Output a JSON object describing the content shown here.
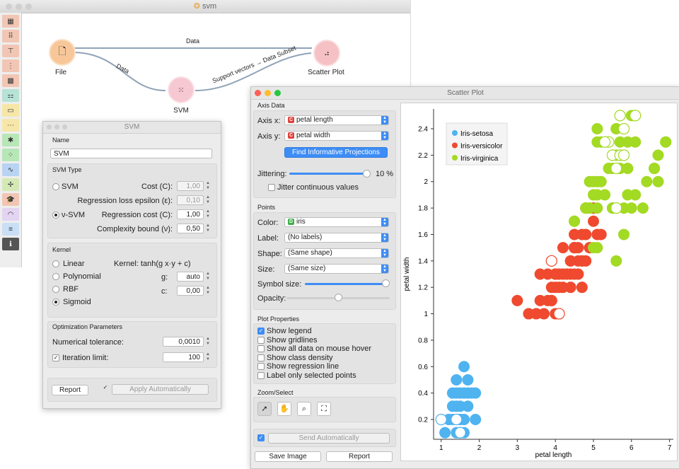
{
  "main_window": {
    "title": "svm"
  },
  "toolbox": {
    "items": [
      {
        "icon": "data-table-icon",
        "glyph": "▦",
        "color": "#f2c6b4"
      },
      {
        "icon": "scatter-icon",
        "glyph": "⠿",
        "color": "#f2c6b4"
      },
      {
        "icon": "tree-icon",
        "glyph": "⊤",
        "color": "#f2c6b4"
      },
      {
        "icon": "distributions-icon",
        "glyph": "⋮",
        "color": "#f2c6b4"
      },
      {
        "icon": "heatmap-icon",
        "glyph": "▩",
        "color": "#f2c6b4"
      },
      {
        "icon": "mosaic-icon",
        "glyph": "⚏",
        "color": "#b7e2d6"
      },
      {
        "icon": "image-icon",
        "glyph": "▭",
        "color": "#f6e7a8"
      },
      {
        "icon": "sieve-icon",
        "glyph": "⋯",
        "color": "#f6e7a8"
      },
      {
        "icon": "network-icon",
        "glyph": "✱",
        "color": "#b7e6b7"
      },
      {
        "icon": "pivot-icon",
        "glyph": "⁘",
        "color": "#b7e6b7"
      },
      {
        "icon": "line-plot-icon",
        "glyph": "∿",
        "color": "#b9d3f3"
      },
      {
        "icon": "pythagoras-icon",
        "glyph": "✢",
        "color": "#d5e9b6"
      },
      {
        "icon": "education-icon",
        "glyph": "🎓",
        "color": "#f2c6b4"
      },
      {
        "icon": "rainbow-icon",
        "glyph": "◠",
        "color": "#e3d4f1"
      },
      {
        "icon": "text-icon",
        "glyph": "≡",
        "color": "#c9dff5"
      },
      {
        "icon": "info-icon",
        "glyph": "ℹ",
        "color": "#555555"
      }
    ]
  },
  "workflow": {
    "nodes": {
      "file": {
        "label": "File"
      },
      "svm": {
        "label": "SVM"
      },
      "scatter": {
        "label": "Scatter Plot"
      }
    },
    "links": {
      "file_scatter": "Data",
      "file_svm": "Data",
      "svm_scatter": "Support vectors → Data Subset"
    }
  },
  "svm_dialog": {
    "title": "SVM",
    "name_label": "Name",
    "name_value": "SVM",
    "svm_type_label": "SVM Type",
    "svm_option": "SVM",
    "cost_label": "Cost (C):",
    "cost_value": "1,00",
    "epsilon_label": "Regression loss epsilon (ε):",
    "epsilon_value": "0,10",
    "nu_option": "ν-SVM",
    "reg_cost_label": "Regression cost (C):",
    "reg_cost_value": "1,00",
    "complexity_label": "Complexity bound (ν):",
    "complexity_value": "0,50",
    "kernel_label": "Kernel",
    "kernel_options": [
      "Linear",
      "Polynomial",
      "RBF",
      "Sigmoid"
    ],
    "kernel_formula": "Kernel: tanh(g x·y + c)",
    "g_label": "g:",
    "g_value": "auto",
    "c_label": "c:",
    "c_value": "0,00",
    "opt_label": "Optimization Parameters",
    "tolerance_label": "Numerical tolerance:",
    "tolerance_value": "0,0010",
    "iteration_label": "Iteration limit:",
    "iteration_value": "100",
    "report_button": "Report",
    "apply_button": "Apply Automatically"
  },
  "scatter_dialog": {
    "title": "Scatter Plot",
    "axis_data_label": "Axis Data",
    "axis_x_label": "Axis x:",
    "axis_x_value": "petal length",
    "axis_y_label": "Axis y:",
    "axis_y_value": "petal width",
    "find_button": "Find Informative Projections",
    "jittering_label": "Jittering:",
    "jittering_value": "10 %",
    "jitter_continuous_label": "Jitter continuous values",
    "points_label": "Points",
    "color_label": "Color:",
    "color_value": "iris",
    "label_label": "Label:",
    "label_value": "(No labels)",
    "shape_label": "Shape:",
    "shape_value": "(Same shape)",
    "size_label": "Size:",
    "size_value": "(Same size)",
    "symbol_size_label": "Symbol size:",
    "opacity_label": "Opacity:",
    "plot_props_label": "Plot Properties",
    "plot_props": [
      {
        "label": "Show legend",
        "checked": true
      },
      {
        "label": "Show gridlines",
        "checked": false
      },
      {
        "label": "Show all data on mouse hover",
        "checked": false
      },
      {
        "label": "Show class density",
        "checked": false
      },
      {
        "label": "Show regression line",
        "checked": false
      },
      {
        "label": "Label only selected points",
        "checked": false
      }
    ],
    "zoom_label": "Zoom/Select",
    "send_button": "Send Automatically",
    "save_button": "Save Image",
    "report_button": "Report",
    "var_icon_c": "C",
    "var_icon_d": "D"
  },
  "chart_data": {
    "type": "scatter",
    "xlabel": "petal length",
    "ylabel": "petal width",
    "xlim": [
      0.8,
      7.1
    ],
    "ylim": [
      0.05,
      2.55
    ],
    "xticks": [
      1,
      2,
      3,
      4,
      5,
      6,
      7
    ],
    "yticks": [
      0.2,
      0.4,
      0.6,
      0.8,
      1,
      1.2,
      1.4,
      1.6,
      1.8,
      2,
      2.2,
      2.4
    ],
    "legend_position": "top-left",
    "series": [
      {
        "name": "Iris-setosa",
        "color": "#4fb3f0",
        "points": [
          [
            1.4,
            0.2
          ],
          [
            1.3,
            0.2
          ],
          [
            1.5,
            0.2
          ],
          [
            1.7,
            0.4
          ],
          [
            1.4,
            0.3
          ],
          [
            1.5,
            0.1
          ],
          [
            1.6,
            0.2
          ],
          [
            1.1,
            0.1
          ],
          [
            1.2,
            0.2
          ],
          [
            1.3,
            0.4
          ],
          [
            1.4,
            0.4
          ],
          [
            1.7,
            0.3
          ],
          [
            1.5,
            0.3
          ],
          [
            1.0,
            0.2
          ],
          [
            1.9,
            0.2
          ],
          [
            1.6,
            0.4
          ],
          [
            1.5,
            0.4
          ],
          [
            1.6,
            0.6
          ],
          [
            1.9,
            0.4
          ],
          [
            1.6,
            0.2
          ],
          [
            1.4,
            0.1
          ],
          [
            1.5,
            0.2
          ],
          [
            1.3,
            0.3
          ],
          [
            1.2,
            0.2
          ],
          [
            1.7,
            0.5
          ],
          [
            1.8,
            0.4
          ],
          [
            1.4,
            0.5
          ],
          [
            1.6,
            0.1
          ],
          [
            1.5,
            0.1
          ]
        ],
        "hollow": [
          [
            1.0,
            0.2
          ],
          [
            1.4,
            0.2
          ],
          [
            1.5,
            0.1
          ]
        ]
      },
      {
        "name": "Iris-versicolor",
        "color": "#ef4a2f",
        "points": [
          [
            4.7,
            1.4
          ],
          [
            4.5,
            1.5
          ],
          [
            4.9,
            1.5
          ],
          [
            4.0,
            1.3
          ],
          [
            4.6,
            1.5
          ],
          [
            4.5,
            1.3
          ],
          [
            4.7,
            1.6
          ],
          [
            3.3,
            1.0
          ],
          [
            4.6,
            1.3
          ],
          [
            3.9,
            1.4
          ],
          [
            3.5,
            1.0
          ],
          [
            4.2,
            1.5
          ],
          [
            4.0,
            1.0
          ],
          [
            4.7,
            1.4
          ],
          [
            3.6,
            1.3
          ],
          [
            4.4,
            1.4
          ],
          [
            4.5,
            1.5
          ],
          [
            4.1,
            1.0
          ],
          [
            4.5,
            1.5
          ],
          [
            3.9,
            1.1
          ],
          [
            4.8,
            1.8
          ],
          [
            4.0,
            1.3
          ],
          [
            4.9,
            1.5
          ],
          [
            4.7,
            1.2
          ],
          [
            4.3,
            1.3
          ],
          [
            4.4,
            1.4
          ],
          [
            4.8,
            1.4
          ],
          [
            5.0,
            1.7
          ],
          [
            4.5,
            1.5
          ],
          [
            3.5,
            1.0
          ],
          [
            3.8,
            1.1
          ],
          [
            3.7,
            1.0
          ],
          [
            3.9,
            1.2
          ],
          [
            5.1,
            1.6
          ],
          [
            4.5,
            1.5
          ],
          [
            4.5,
            1.6
          ],
          [
            4.4,
            1.3
          ],
          [
            4.1,
            1.3
          ],
          [
            4.0,
            1.3
          ],
          [
            4.4,
            1.2
          ],
          [
            4.6,
            1.4
          ],
          [
            4.0,
            1.2
          ],
          [
            3.3,
            1.0
          ],
          [
            4.2,
            1.3
          ],
          [
            4.2,
            1.2
          ],
          [
            4.3,
            1.3
          ],
          [
            3.0,
            1.1
          ],
          [
            4.1,
            1.3
          ],
          [
            4.8,
            1.6
          ],
          [
            5.0,
            1.8
          ],
          [
            3.8,
            1.3
          ],
          [
            4.1,
            1.2
          ],
          [
            4.8,
            1.8
          ],
          [
            5.2,
            1.6
          ],
          [
            3.6,
            1.1
          ],
          [
            3.9,
            1.1
          ]
        ],
        "hollow": [
          [
            4.1,
            1.0
          ],
          [
            3.9,
            1.4
          ]
        ]
      },
      {
        "name": "Iris-virginica",
        "color": "#a3da23",
        "points": [
          [
            6.0,
            2.5
          ],
          [
            5.1,
            1.9
          ],
          [
            5.9,
            2.1
          ],
          [
            5.6,
            1.8
          ],
          [
            5.8,
            2.2
          ],
          [
            6.6,
            2.1
          ],
          [
            4.5,
            1.7
          ],
          [
            6.3,
            1.8
          ],
          [
            5.8,
            1.8
          ],
          [
            6.1,
            2.5
          ],
          [
            5.1,
            2.0
          ],
          [
            5.3,
            1.9
          ],
          [
            5.5,
            2.1
          ],
          [
            5.0,
            2.0
          ],
          [
            5.1,
            2.4
          ],
          [
            5.3,
            2.3
          ],
          [
            5.5,
            1.8
          ],
          [
            6.7,
            2.2
          ],
          [
            6.9,
            2.3
          ],
          [
            5.0,
            1.5
          ],
          [
            5.7,
            2.3
          ],
          [
            4.9,
            2.0
          ],
          [
            6.7,
            2.0
          ],
          [
            4.9,
            1.8
          ],
          [
            5.7,
            2.1
          ],
          [
            6.0,
            1.8
          ],
          [
            4.8,
            1.8
          ],
          [
            4.9,
            1.8
          ],
          [
            5.6,
            2.1
          ],
          [
            5.8,
            1.6
          ],
          [
            6.1,
            1.9
          ],
          [
            6.4,
            2.0
          ],
          [
            5.6,
            2.2
          ],
          [
            5.1,
            1.5
          ],
          [
            5.6,
            1.4
          ],
          [
            6.1,
            2.3
          ],
          [
            5.6,
            2.4
          ],
          [
            5.5,
            1.8
          ],
          [
            4.8,
            1.8
          ],
          [
            5.4,
            2.1
          ],
          [
            5.6,
            2.4
          ],
          [
            5.1,
            2.3
          ],
          [
            5.9,
            2.3
          ],
          [
            5.7,
            2.5
          ],
          [
            5.2,
            2.3
          ],
          [
            5.0,
            1.9
          ],
          [
            5.2,
            2.0
          ],
          [
            5.4,
            2.3
          ],
          [
            5.1,
            1.8
          ],
          [
            6.9,
            2.3
          ],
          [
            6.6,
            2.1
          ],
          [
            4.5,
            1.7
          ],
          [
            5.9,
            1.9
          ]
        ],
        "hollow": [
          [
            5.7,
            2.5
          ],
          [
            5.4,
            2.3
          ],
          [
            5.5,
            2.2
          ],
          [
            5.6,
            2.1
          ],
          [
            6.1,
            2.5
          ],
          [
            5.8,
            2.4
          ],
          [
            5.7,
            2.2
          ],
          [
            5.3,
            2.3
          ],
          [
            5.6,
            1.8
          ],
          [
            5.8,
            2.2
          ]
        ]
      }
    ]
  }
}
